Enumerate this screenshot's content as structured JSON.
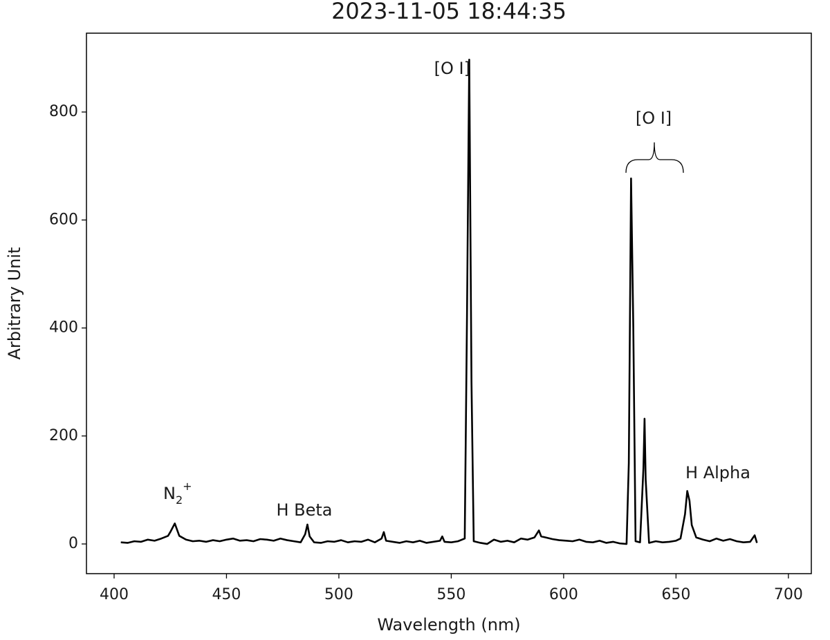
{
  "chart_data": {
    "type": "line",
    "title": "2023-11-05 18:44:35",
    "x_label": "Wavelength (nm)",
    "y_label": "Arbitrary Unit",
    "xlim": [
      387.7,
      710.2
    ],
    "ylim": [
      -55,
      946
    ],
    "xticks": [
      400,
      450,
      500,
      550,
      600,
      650,
      700
    ],
    "yticks": [
      0,
      200,
      400,
      600,
      800
    ],
    "grid": false,
    "x": [
      403,
      406,
      409,
      412,
      415,
      418,
      421,
      424,
      425,
      427,
      429,
      432,
      435,
      438,
      441,
      444,
      447,
      450,
      453,
      456,
      459,
      462,
      465,
      468,
      471,
      474,
      477,
      480,
      483,
      485,
      486,
      487,
      489,
      492,
      495,
      498,
      501,
      504,
      507,
      510,
      513,
      516,
      519,
      520,
      521,
      524,
      527,
      530,
      533,
      536,
      539,
      542,
      545,
      546,
      547,
      550,
      553,
      556,
      557,
      558,
      559,
      560,
      563,
      566,
      569,
      572,
      575,
      578,
      581,
      584,
      587,
      589,
      590,
      592,
      595,
      598,
      601,
      604,
      607,
      610,
      613,
      616,
      619,
      622,
      625,
      628,
      629,
      630,
      631,
      632,
      634,
      635.5,
      636,
      636.5,
      638,
      641,
      644,
      647,
      650,
      652,
      654,
      655,
      656,
      657,
      659,
      662,
      665,
      668,
      671,
      674,
      677,
      680,
      683,
      685,
      686
    ],
    "series": [
      {
        "color": "#000000",
        "values": [
          3,
          2,
          5,
          4,
          8,
          6,
          10,
          15,
          22,
          38,
          15,
          8,
          5,
          6,
          4,
          7,
          5,
          8,
          10,
          6,
          7,
          5,
          9,
          8,
          6,
          10,
          7,
          5,
          3,
          18,
          36,
          14,
          3,
          2,
          5,
          4,
          7,
          3,
          5,
          4,
          8,
          3,
          10,
          22,
          6,
          4,
          2,
          5,
          3,
          6,
          2,
          4,
          6,
          14,
          4,
          3,
          5,
          10,
          420,
          897,
          300,
          5,
          2,
          0,
          8,
          4,
          6,
          3,
          10,
          8,
          12,
          25,
          14,
          12,
          9,
          7,
          6,
          5,
          8,
          4,
          3,
          6,
          2,
          4,
          1,
          0,
          150,
          677,
          400,
          5,
          3,
          140,
          232,
          120,
          2,
          5,
          3,
          4,
          6,
          10,
          55,
          98,
          80,
          35,
          12,
          8,
          5,
          10,
          6,
          9,
          5,
          3,
          4,
          16,
          2
        ]
      }
    ],
    "annotations": [
      {
        "text": "[O I]"
      },
      {
        "text": "[O I]"
      },
      {
        "text": "N",
        "sub": "2",
        "sup": "+"
      },
      {
        "text": "H Beta"
      },
      {
        "text": "H Alpha"
      }
    ]
  }
}
